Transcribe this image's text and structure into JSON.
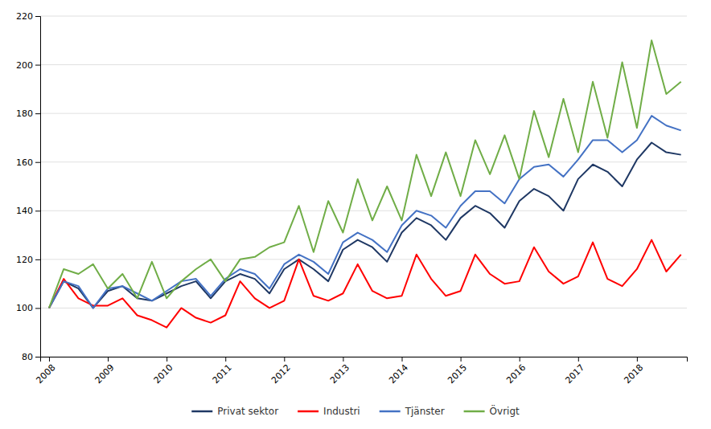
{
  "chart_data": {
    "type": "line",
    "x": [
      2008,
      2008.25,
      2008.5,
      2008.75,
      2009,
      2009.25,
      2009.5,
      2009.75,
      2010,
      2010.25,
      2010.5,
      2010.75,
      2011,
      2011.25,
      2011.5,
      2011.75,
      2012,
      2012.25,
      2012.5,
      2012.75,
      2013,
      2013.25,
      2013.5,
      2013.75,
      2014,
      2014.25,
      2014.5,
      2014.75,
      2015,
      2015.25,
      2015.5,
      2015.75,
      2016,
      2016.25,
      2016.5,
      2016.75,
      2017,
      2017.25,
      2017.5,
      2017.75,
      2018,
      2018.25,
      2018.5,
      2018.75
    ],
    "xlim": [
      2007.85,
      2018.85
    ],
    "xticks": [
      2008,
      2009,
      2010,
      2011,
      2012,
      2013,
      2014,
      2015,
      2016,
      2017,
      2018
    ],
    "ylim": [
      80,
      220
    ],
    "yticks": [
      80,
      100,
      120,
      140,
      160,
      180,
      200,
      220
    ],
    "grid": true,
    "legend": "bottom",
    "series": [
      {
        "name": "Privat sektor",
        "color": "#1f3864",
        "values": [
          100,
          111,
          108,
          100,
          107,
          109,
          104,
          103,
          106,
          109,
          111,
          104,
          111,
          114,
          112,
          106,
          116,
          120,
          116,
          111,
          124,
          128,
          125,
          119,
          131,
          137,
          134,
          128,
          137,
          142,
          139,
          133,
          144,
          149,
          146,
          140,
          153,
          159,
          156,
          150,
          161,
          168,
          164,
          163
        ]
      },
      {
        "name": "Industri",
        "color": "#ff0000",
        "values": [
          100,
          112,
          104,
          101,
          101,
          104,
          97,
          95,
          92,
          100,
          96,
          94,
          97,
          111,
          104,
          100,
          103,
          120,
          105,
          103,
          106,
          118,
          107,
          104,
          105,
          122,
          112,
          105,
          107,
          122,
          114,
          110,
          111,
          125,
          115,
          110,
          113,
          127,
          112,
          109,
          116,
          128,
          115,
          122
        ]
      },
      {
        "name": "Tjänster",
        "color": "#4472c4",
        "values": [
          100,
          111,
          109,
          100,
          108,
          109,
          106,
          103,
          107,
          111,
          112,
          105,
          112,
          116,
          114,
          108,
          118,
          122,
          119,
          114,
          127,
          131,
          128,
          123,
          134,
          140,
          138,
          133,
          142,
          148,
          148,
          143,
          153,
          158,
          159,
          154,
          161,
          169,
          169,
          164,
          169,
          179,
          175,
          173
        ]
      },
      {
        "name": "Övrigt",
        "color": "#70ad47",
        "values": [
          100,
          116,
          114,
          118,
          108,
          114,
          104,
          119,
          104,
          111,
          116,
          120,
          111,
          120,
          121,
          125,
          127,
          142,
          123,
          144,
          131,
          153,
          136,
          150,
          136,
          163,
          146,
          164,
          146,
          169,
          155,
          171,
          153,
          181,
          162,
          186,
          164,
          193,
          170,
          201,
          174,
          210,
          188,
          193
        ]
      }
    ]
  }
}
